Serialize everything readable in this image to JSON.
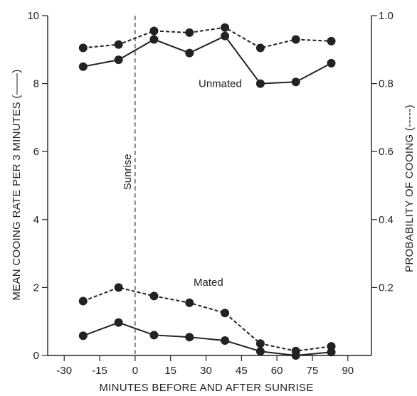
{
  "chart_data": {
    "type": "line",
    "xlabel": "MINUTES BEFORE AND AFTER SUNRISE",
    "ylabel_left": "MEAN COOING RATE PER 3 MINUTES (——)",
    "ylabel_right": "PROBABILITY OF COOING (-----)",
    "xlim": [
      -37,
      100
    ],
    "ylim_left": [
      0,
      10
    ],
    "ylim_right": [
      0,
      1.0
    ],
    "x_ticks": [
      -30,
      -15,
      0,
      15,
      30,
      45,
      60,
      75,
      90
    ],
    "y_ticks_left": [
      0,
      2,
      4,
      6,
      8,
      10
    ],
    "y_ticks_right": [
      {
        "value": 0.2,
        "label": "0.2"
      },
      {
        "value": 0.4,
        "label": "0.4"
      },
      {
        "value": 0.6,
        "label": "0.6"
      },
      {
        "value": 0.8,
        "label": "0.8"
      },
      {
        "value": 1.0,
        "label": "1.0"
      }
    ],
    "vline": {
      "x": 0,
      "label": "Sunrise"
    },
    "annotations": [
      {
        "text": "Unmated",
        "x": 36,
        "y": 7.9
      },
      {
        "text": "Mated",
        "x": 31,
        "y": 2.05
      }
    ],
    "series": [
      {
        "style": "solid",
        "axis": "left",
        "x": [
          -22,
          -7,
          8,
          23,
          38,
          53,
          68,
          83
        ],
        "y": [
          8.5,
          8.7,
          9.3,
          8.9,
          9.4,
          8.0,
          8.05,
          8.6
        ]
      },
      {
        "style": "dashed",
        "axis": "right",
        "x": [
          -22,
          -7,
          8,
          23,
          38,
          53,
          68,
          83
        ],
        "y": [
          0.905,
          0.915,
          0.955,
          0.95,
          0.965,
          0.905,
          0.93,
          0.925
        ]
      },
      {
        "style": "solid",
        "axis": "left",
        "x": [
          -22,
          -7,
          8,
          23,
          38,
          53,
          68,
          83
        ],
        "y": [
          0.58,
          0.97,
          0.6,
          0.54,
          0.44,
          0.12,
          0.0,
          0.1
        ]
      },
      {
        "style": "dashed",
        "axis": "right",
        "x": [
          -22,
          -7,
          8,
          23,
          38,
          53,
          68,
          83
        ],
        "y": [
          0.16,
          0.2,
          0.175,
          0.155,
          0.125,
          0.035,
          0.013,
          0.027
        ]
      }
    ]
  }
}
